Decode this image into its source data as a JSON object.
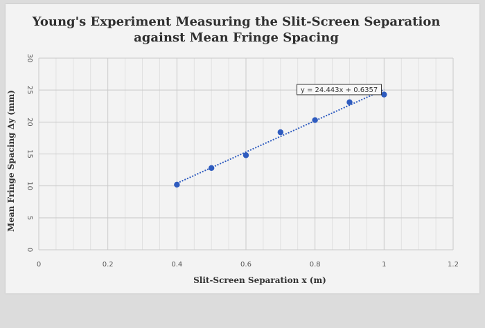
{
  "chart_data": {
    "type": "scatter",
    "title": "Young's Experiment Measuring the Slit-Screen Separation against Mean Fringe Spacing",
    "title_lines": [
      "Young's Experiment Measuring the Slit-Screen Separation",
      "against Mean Fringe Spacing"
    ],
    "xlabel": "Slit-Screen Separation x (m)",
    "ylabel": "Mean Fringe Spacing Δy  (mm)",
    "xlim": [
      0,
      1.2
    ],
    "ylim": [
      0,
      30
    ],
    "x_ticks": [
      "0",
      "0.2",
      "0.4",
      "0.6",
      "0.8",
      "1",
      "1.2"
    ],
    "y_ticks": [
      "0",
      "5",
      "10",
      "15",
      "20",
      "25",
      "30"
    ],
    "grid": true,
    "series": [
      {
        "x": [
          0.4,
          0.5,
          0.6,
          0.7,
          0.8,
          0.9,
          1.0
        ],
        "y": [
          10.2,
          12.8,
          14.8,
          18.4,
          20.3,
          23.1,
          24.3
        ],
        "color": "#2e5bbf"
      }
    ],
    "trendline": {
      "slope": 24.443,
      "intercept": 0.6357,
      "x_range": [
        0.4,
        1.0
      ],
      "equation": "y = 24.443x + 0.6357",
      "color": "#2e5bbf",
      "style": "dotted"
    }
  }
}
